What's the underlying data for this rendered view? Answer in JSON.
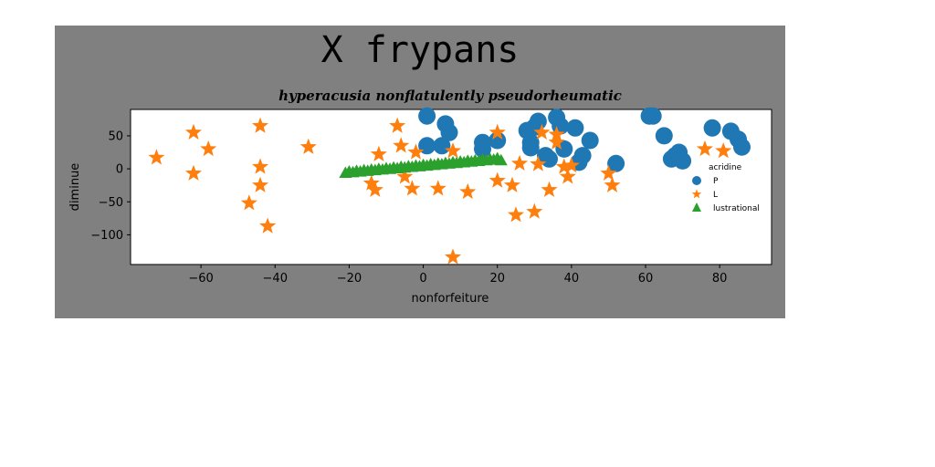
{
  "chart_data": {
    "type": "scatter",
    "title": "X frypans",
    "subtitle": "hyperacusia nonflatulently pseudorheumatic",
    "xlabel": "nonforfeiture",
    "ylabel": "diminue",
    "xlim": [
      -79,
      94
    ],
    "ylim": [
      -145,
      90
    ],
    "xticks": [
      -60,
      -40,
      -20,
      0,
      20,
      40,
      60,
      80
    ],
    "yticks": [
      -100,
      -50,
      0,
      50
    ],
    "xtick_labels": [
      "−60",
      "−40",
      "−20",
      "0",
      "20",
      "40",
      "60",
      "80"
    ],
    "ytick_labels": [
      "−100",
      "−50",
      "0",
      "50"
    ],
    "grid": false,
    "legend": {
      "placement": "center-right",
      "title": "acridine",
      "entries": [
        "P",
        "L",
        "lustrational"
      ]
    },
    "series": [
      {
        "name": "P",
        "marker": "circle",
        "color": "#1f77b4",
        "points": [
          [
            1,
            80
          ],
          [
            1,
            35
          ],
          [
            6,
            68
          ],
          [
            5,
            35
          ],
          [
            7,
            55
          ],
          [
            16,
            40
          ],
          [
            16,
            30
          ],
          [
            20,
            43
          ],
          [
            28,
            58
          ],
          [
            29,
            40
          ],
          [
            29,
            32
          ],
          [
            30,
            63
          ],
          [
            31,
            72
          ],
          [
            33,
            20
          ],
          [
            34,
            15
          ],
          [
            36,
            78
          ],
          [
            37,
            65
          ],
          [
            38,
            30
          ],
          [
            41,
            62
          ],
          [
            42,
            10
          ],
          [
            43,
            20
          ],
          [
            45,
            43
          ],
          [
            52,
            8
          ],
          [
            61,
            80
          ],
          [
            62,
            80
          ],
          [
            65,
            50
          ],
          [
            68,
            20
          ],
          [
            69,
            25
          ],
          [
            67,
            15
          ],
          [
            70,
            12
          ],
          [
            78,
            62
          ],
          [
            83,
            57
          ],
          [
            85,
            45
          ],
          [
            86,
            33
          ]
        ]
      },
      {
        "name": "L",
        "marker": "star",
        "color": "#ff7f0e",
        "points": [
          [
            -72,
            17
          ],
          [
            -62,
            55
          ],
          [
            -58,
            30
          ],
          [
            -62,
            -7
          ],
          [
            -44,
            65
          ],
          [
            -44,
            3
          ],
          [
            -44,
            -25
          ],
          [
            -47,
            -52
          ],
          [
            -42,
            -87
          ],
          [
            -31,
            33
          ],
          [
            -14,
            -22
          ],
          [
            -13,
            -32
          ],
          [
            -12,
            22
          ],
          [
            -7,
            65
          ],
          [
            -6,
            35
          ],
          [
            -5,
            -12
          ],
          [
            -3,
            -30
          ],
          [
            -2,
            25
          ],
          [
            4,
            -30
          ],
          [
            8,
            -134
          ],
          [
            8,
            27
          ],
          [
            12,
            -35
          ],
          [
            20,
            55
          ],
          [
            20,
            -18
          ],
          [
            24,
            -25
          ],
          [
            25,
            -70
          ],
          [
            26,
            8
          ],
          [
            30,
            -65
          ],
          [
            31,
            7
          ],
          [
            32,
            55
          ],
          [
            34,
            -32
          ],
          [
            36,
            40
          ],
          [
            36,
            52
          ],
          [
            38,
            3
          ],
          [
            39,
            -12
          ],
          [
            40,
            5
          ],
          [
            50,
            -7
          ],
          [
            51,
            -25
          ],
          [
            76,
            30
          ],
          [
            81,
            27
          ]
        ]
      },
      {
        "name": "lustrational",
        "marker": "triangle",
        "color": "#2ca02c",
        "points": [
          [
            -21,
            -6
          ],
          [
            -20,
            -4
          ],
          [
            -19,
            -5
          ],
          [
            -18,
            -3
          ],
          [
            -17,
            -4
          ],
          [
            -16,
            -2
          ],
          [
            -15,
            -3
          ],
          [
            -14,
            -1
          ],
          [
            -13,
            -2
          ],
          [
            -12,
            0
          ],
          [
            -11,
            -1
          ],
          [
            -10,
            1
          ],
          [
            -9,
            0
          ],
          [
            -8,
            2
          ],
          [
            -7,
            1
          ],
          [
            -6,
            3
          ],
          [
            -5,
            2
          ],
          [
            -4,
            4
          ],
          [
            -3,
            3
          ],
          [
            -2,
            5
          ],
          [
            -1,
            4
          ],
          [
            0,
            6
          ],
          [
            1,
            5
          ],
          [
            2,
            7
          ],
          [
            3,
            6
          ],
          [
            4,
            8
          ],
          [
            5,
            7
          ],
          [
            6,
            9
          ],
          [
            7,
            8
          ],
          [
            8,
            10
          ],
          [
            9,
            9
          ],
          [
            10,
            11
          ],
          [
            11,
            10
          ],
          [
            12,
            12
          ],
          [
            13,
            11
          ],
          [
            14,
            13
          ],
          [
            15,
            12
          ],
          [
            16,
            14
          ],
          [
            17,
            13
          ],
          [
            18,
            15
          ],
          [
            19,
            14
          ],
          [
            20,
            16
          ],
          [
            21,
            13
          ]
        ]
      }
    ]
  }
}
